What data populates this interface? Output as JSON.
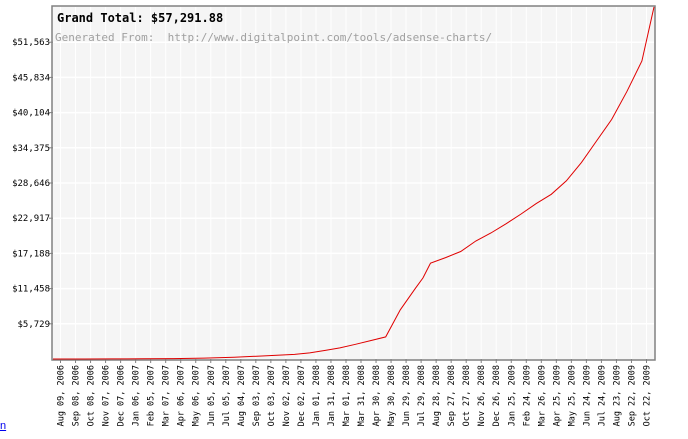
{
  "chart_data": {
    "type": "line",
    "title": "Grand Total: $57,291.88",
    "subtitle": "Generated From:  http://www.digitalpoint.com/tools/adsense-charts/",
    "ytick_labels": [
      "$5,729",
      "$11,458",
      "$17,188",
      "$22,917",
      "$28,646",
      "$34,375",
      "$40,104",
      "$45,834",
      "$51,563"
    ],
    "ytick_values": [
      5729,
      11458,
      17188,
      22917,
      28646,
      34375,
      40104,
      45834,
      51563
    ],
    "ylim": [
      0,
      57292
    ],
    "xtick_labels": [
      "Aug 09, 2006",
      "Sep 08, 2006",
      "Oct 08, 2006",
      "Nov 07, 2006",
      "Dec 07, 2006",
      "Jan 06, 2007",
      "Feb 05, 2007",
      "Mar 07, 2007",
      "Apr 06, 2007",
      "May 06, 2007",
      "Jun 05, 2007",
      "Jul 05, 2007",
      "Aug 04, 2007",
      "Sep 03, 2007",
      "Oct 03, 2007",
      "Nov 02, 2007",
      "Dec 02, 2007",
      "Jan 01, 2008",
      "Jan 31, 2008",
      "Mar 01, 2008",
      "Mar 31, 2008",
      "Apr 30, 2008",
      "May 30, 2008",
      "Jun 29, 2008",
      "Jul 29, 2008",
      "Aug 28, 2008",
      "Sep 27, 2008",
      "Oct 27, 2008",
      "Nov 26, 2008",
      "Dec 26, 2008",
      "Jan 25, 2009",
      "Feb 24, 2009",
      "Mar 26, 2009",
      "Apr 25, 2009",
      "May 25, 2009",
      "Jun 24, 2009",
      "Jul 24, 2009",
      "Aug 23, 2009",
      "Sep 22, 2009",
      "Oct 22, 2009"
    ],
    "xlim": [
      "2006-08-09",
      "2009-11-15"
    ],
    "series": [
      {
        "points": [
          [
            "2006-08-09",
            0
          ],
          [
            "2006-10-08",
            5
          ],
          [
            "2006-12-07",
            15
          ],
          [
            "2007-02-05",
            30
          ],
          [
            "2007-04-06",
            60
          ],
          [
            "2007-06-05",
            150
          ],
          [
            "2007-08-04",
            300
          ],
          [
            "2007-10-03",
            500
          ],
          [
            "2007-12-02",
            750
          ],
          [
            "2008-01-01",
            1000
          ],
          [
            "2008-02-01",
            1400
          ],
          [
            "2008-03-01",
            1800
          ],
          [
            "2008-04-01",
            2400
          ],
          [
            "2008-05-01",
            3000
          ],
          [
            "2008-05-31",
            3600
          ],
          [
            "2008-06-29",
            8000
          ],
          [
            "2008-07-29",
            11500
          ],
          [
            "2008-08-13",
            13200
          ],
          [
            "2008-08-28",
            15600
          ],
          [
            "2008-09-27",
            16500
          ],
          [
            "2008-10-27",
            17500
          ],
          [
            "2008-11-26",
            19200
          ],
          [
            "2008-12-26",
            20500
          ],
          [
            "2009-01-25",
            22000
          ],
          [
            "2009-02-24",
            23600
          ],
          [
            "2009-03-26",
            25300
          ],
          [
            "2009-04-25",
            26800
          ],
          [
            "2009-05-25",
            29000
          ],
          [
            "2009-06-24",
            32000
          ],
          [
            "2009-07-24",
            35500
          ],
          [
            "2009-08-23",
            39000
          ],
          [
            "2009-09-22",
            43500
          ],
          [
            "2009-10-22",
            48500
          ],
          [
            "2009-11-15",
            57292
          ]
        ]
      }
    ],
    "grid": true,
    "colors": {
      "line": "#e00000",
      "plot_bg": "#f5f5f5",
      "grid": "#ffffff",
      "frame": "#808080",
      "title": "#000000",
      "subtitle": "#a0a0a0"
    }
  },
  "footer": {
    "link_text": "n"
  }
}
